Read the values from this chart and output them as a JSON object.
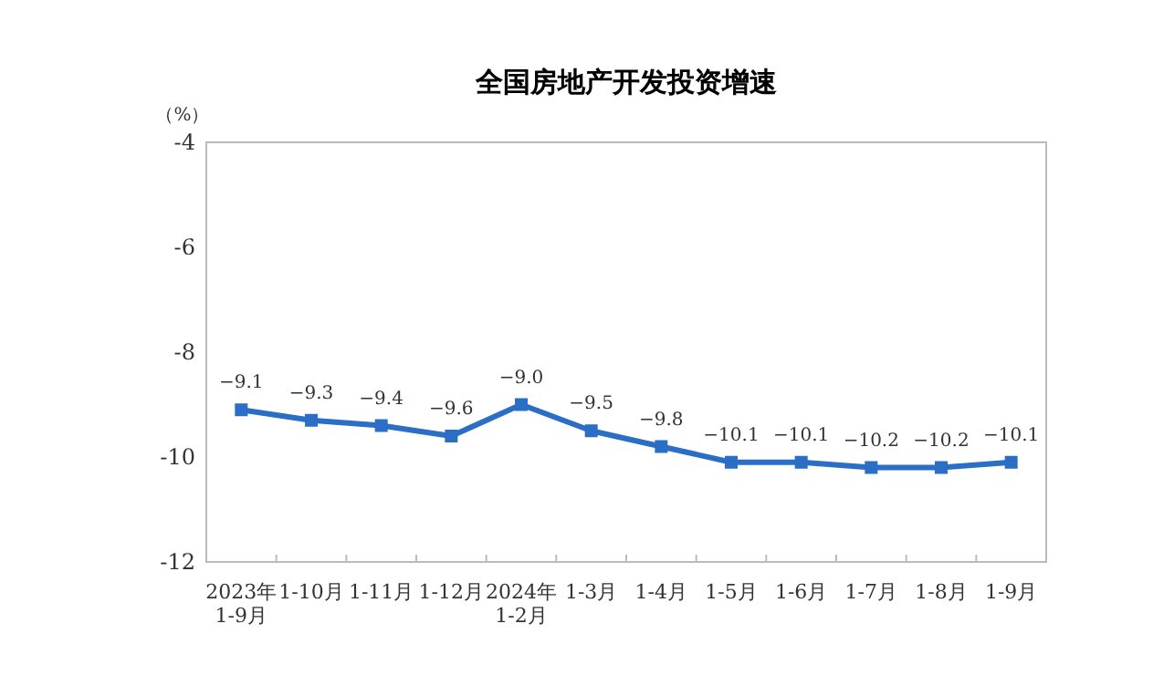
{
  "chart_data": {
    "type": "line",
    "title": "全国房地产开发投资增速",
    "ylabel": "（%）",
    "categories": [
      "2023年\n1-9月",
      "1-10月",
      "1-11月",
      "1-12月",
      "2024年\n1-2月",
      "1-3月",
      "1-4月",
      "1-5月",
      "1-6月",
      "1-7月",
      "1-8月",
      "1-9月"
    ],
    "series": [
      {
        "color": "#2a6ec6",
        "values": [
          -9.1,
          -9.3,
          -9.4,
          -9.6,
          -9.0,
          -9.5,
          -9.8,
          -10.1,
          -10.1,
          -10.2,
          -10.2,
          -10.1
        ],
        "value_labels": [
          "−9.1",
          "−9.3",
          "−9.4",
          "−9.6",
          "−9.0",
          "−9.5",
          "−9.8",
          "−10.1",
          "−10.1",
          "−10.2",
          "−10.2",
          "−10.1"
        ]
      }
    ],
    "ylim": [
      -12,
      -4
    ],
    "yticks": [
      -4,
      -6,
      -8,
      -10,
      -12
    ],
    "marker": "square",
    "line_style": "solid",
    "grid": false
  }
}
